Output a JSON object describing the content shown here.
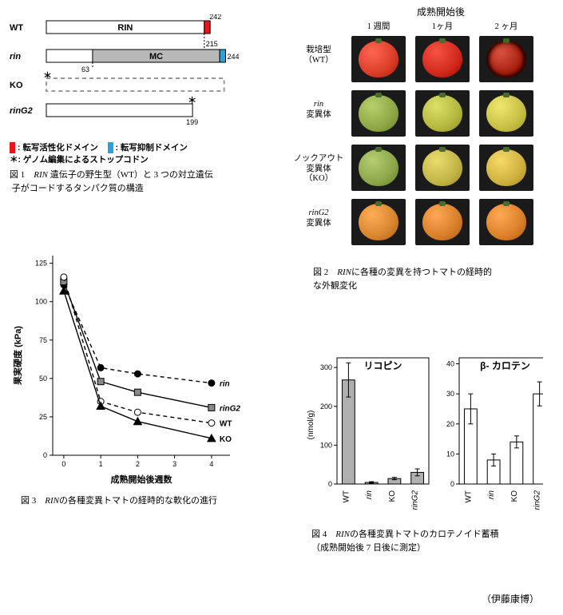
{
  "fig1": {
    "caption_a": "図 1　",
    "caption_b": "RIN",
    "caption_c": " 遺伝子の野生型（WT）と 3 つの対立遺伝",
    "caption_d": "子がコードするタンパク質の構造",
    "wt_label": "WT",
    "rin_label": "rin",
    "ko_label": "KO",
    "ring2_label": "rinG2",
    "rin_domain_label": "RIN",
    "mc_domain_label": "MC",
    "len_242": "242",
    "len_215": "215",
    "len_63": "63",
    "len_244": "244",
    "len_199": "199",
    "legend_act": ": 転写活性化ドメイン",
    "legend_rep": ": 転写抑制ドメイン",
    "legend_stop": ": ゲノム編集によるストップコドン",
    "legend_star": "＊",
    "colors": {
      "act": "#e8151a",
      "rep": "#2aa2dc",
      "box_fill": "#fff",
      "mc_fill": "#b8b8b8",
      "dash": "#999"
    }
  },
  "fig2": {
    "title": "成熟開始後",
    "cols": [
      "1 週間",
      "1ヶ月",
      "2 ヶ月"
    ],
    "rows": [
      {
        "l1": "栽培型",
        "l2": "（WT）",
        "style": ""
      },
      {
        "l1": "rin",
        "l2": "変異体",
        "style": "italic-first"
      },
      {
        "l1": "ノックアウト",
        "l2": "変異体",
        "l3": "（KO）",
        "style": ""
      },
      {
        "l1": "rinG2",
        "l2": "変異体",
        "style": "italic-first"
      }
    ],
    "fruit_colors": [
      [
        "#d93e29",
        "#cf2a1c",
        "#a33224"
      ],
      [
        "#8fa845",
        "#b5b83f",
        "#c8c044"
      ],
      [
        "#8ea64a",
        "#c2b445",
        "#cfb13f"
      ],
      [
        "#d8852f",
        "#d87f2c",
        "#da802b"
      ]
    ],
    "caption_a": "図 2　",
    "caption_b": "RIN",
    "caption_c": "に各種の変異を持つトマトの経時的",
    "caption_d": "な外観変化"
  },
  "fig3": {
    "ylabel": "果実硬度 (kPa)",
    "xlabel": "成熟開始後週数",
    "yticks": [
      0,
      25,
      50,
      75,
      100,
      125
    ],
    "xticks": [
      0,
      1,
      2,
      3,
      4
    ],
    "ylim": [
      0,
      130
    ],
    "xlim": [
      -0.3,
      4.5
    ],
    "series": [
      {
        "name": "rin",
        "marker": "circle",
        "fill": "#000",
        "dash": "5,4",
        "data": [
          [
            0,
            111
          ],
          [
            1,
            57
          ],
          [
            2,
            53
          ],
          [
            4,
            47
          ]
        ],
        "label_italic": true
      },
      {
        "name": "rinG2",
        "marker": "square",
        "fill": "#888",
        "dash": "none",
        "data": [
          [
            0,
            113
          ],
          [
            1,
            48
          ],
          [
            2,
            41
          ],
          [
            4,
            31
          ]
        ],
        "label_italic": true
      },
      {
        "name": "WT",
        "marker": "circle",
        "fill": "none",
        "dash": "5,4",
        "data": [
          [
            0,
            116
          ],
          [
            1,
            35
          ],
          [
            2,
            28
          ],
          [
            4,
            21
          ]
        ],
        "label_italic": false
      },
      {
        "name": "KO",
        "marker": "triangle",
        "fill": "#000",
        "dash": "none",
        "data": [
          [
            0,
            107
          ],
          [
            1,
            32
          ],
          [
            2,
            22
          ],
          [
            4,
            11
          ]
        ],
        "label_italic": false
      }
    ],
    "caption_a": "図 3　",
    "caption_b": "RIN",
    "caption_c": "の各種変異トマトの経時的な軟化の進行"
  },
  "fig4": {
    "ylabel": "(nmol/g)",
    "title_lyco": "リコピン",
    "title_bcar": "β‑ カロテン",
    "xcats": [
      "WT",
      "rin",
      "KO",
      "rinG2"
    ],
    "xcats_italic": [
      false,
      true,
      false,
      true
    ],
    "lyco": {
      "vals": [
        268,
        4,
        14,
        30
      ],
      "errs": [
        44,
        2,
        3,
        9
      ],
      "ylim": [
        0,
        325
      ],
      "yticks": [
        0,
        100,
        200,
        300
      ],
      "fill": "#b0b0b0"
    },
    "bcar": {
      "vals": [
        25,
        8,
        14,
        30
      ],
      "errs": [
        5,
        2,
        2,
        4
      ],
      "ylim": [
        0,
        42
      ],
      "yticks": [
        0,
        10,
        20,
        30,
        40
      ],
      "fill": "#ffffff"
    },
    "caption_a": "図 4　",
    "caption_b": "RIN",
    "caption_c": "の各種変異トマトのカロテノイド蓄積",
    "caption_d": "（成熟開始後 7 日後に測定）"
  },
  "credit": "（伊藤康博）"
}
